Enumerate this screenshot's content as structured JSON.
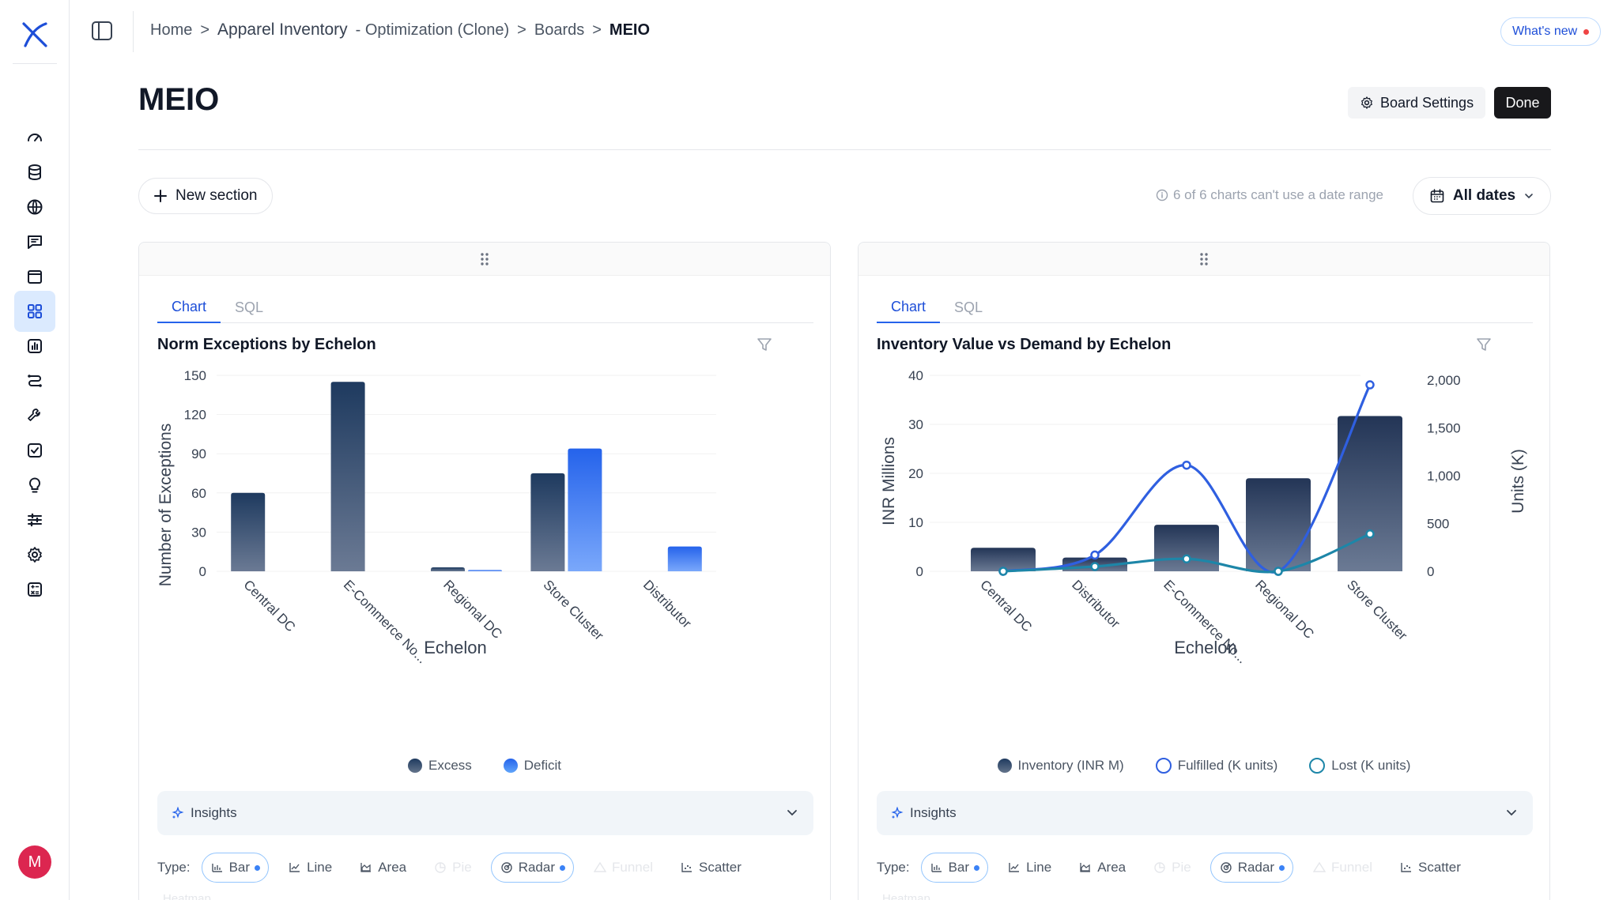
{
  "breadcrumb": {
    "home": "Home",
    "project": "Apparel Inventory",
    "project_sub": "- Optimization (Clone)",
    "boards": "Boards",
    "current": "MEIO",
    "separator": ">"
  },
  "header": {
    "whats_new": "What's new",
    "page_title": "MEIO",
    "board_settings": "Board Settings",
    "done": "Done"
  },
  "toolbar": {
    "new_section": "New section",
    "date_note": "6 of 6 charts can't use a date range",
    "all_dates": "All dates"
  },
  "user": {
    "initial": "M"
  },
  "sidebar": {
    "icons": [
      "gauge-icon",
      "database-icon",
      "globe-icon",
      "chat-icon",
      "folder-icon",
      "boards-icon",
      "report-icon",
      "workflow-icon",
      "tools-icon",
      "checklist-icon",
      "lightbulb-icon",
      "sliders-icon",
      "settings-gear-icon",
      "calculator-icon"
    ],
    "active_index": 5
  },
  "colors": {
    "accent": "#2563eb",
    "excess": "#1e3a5f",
    "deficit": "#3b82f6",
    "inventory": "#27375a",
    "fulfilled": "#2f5fe0",
    "lost": "#1d86a8"
  },
  "left_panel": {
    "tabs": [
      "Chart",
      "SQL"
    ],
    "active_tab": "Chart",
    "title": "Norm Exceptions by Echelon",
    "legend": [
      "Excess",
      "Deficit"
    ],
    "insights_label": "Insights",
    "type_label": "Type:",
    "types": [
      "Bar",
      "Line",
      "Area",
      "Pie",
      "Radar",
      "Funnel",
      "Scatter"
    ],
    "heatmap_label": "Heatmap"
  },
  "right_panel": {
    "tabs": [
      "Chart",
      "SQL"
    ],
    "active_tab": "Chart",
    "title": "Inventory Value vs Demand by Echelon",
    "legend": [
      "Inventory (INR M)",
      "Fulfilled (K units)",
      "Lost (K units)"
    ],
    "insights_label": "Insights",
    "type_label": "Type:",
    "types": [
      "Bar",
      "Line",
      "Area",
      "Pie",
      "Radar",
      "Funnel",
      "Scatter"
    ],
    "heatmap_label": "Heatmap"
  },
  "chart_data": [
    {
      "type": "bar",
      "title": "Norm Exceptions by Echelon",
      "xlabel": "Echelon",
      "ylabel": "Number of Exceptions",
      "ylim": [
        0,
        150
      ],
      "yticks": [
        0,
        30,
        60,
        90,
        120,
        150
      ],
      "categories": [
        "Central DC",
        "E-Commerce No...",
        "Regional DC",
        "Store Cluster",
        "Distributor"
      ],
      "series": [
        {
          "name": "Excess",
          "values": [
            60,
            145,
            3,
            75,
            0
          ]
        },
        {
          "name": "Deficit",
          "values": [
            0,
            0,
            1,
            94,
            19
          ]
        }
      ],
      "legend": "bottom",
      "grid": true
    },
    {
      "type": "bar",
      "title": "Inventory Value vs Demand by Echelon",
      "xlabel": "Echelon",
      "ylabel": "INR Millions",
      "y2label": "Units (K)",
      "ylim": [
        0,
        40
      ],
      "yticks": [
        0,
        10,
        20,
        30,
        40
      ],
      "y2lim": [
        0,
        2000
      ],
      "y2ticks": [
        "0",
        "500",
        "1,000",
        "1,500",
        "2,000"
      ],
      "categories": [
        "Central DC",
        "Distributor",
        "E-Commerce No...",
        "Regional DC",
        "Store Cluster"
      ],
      "series": [
        {
          "name": "Inventory (INR M)",
          "kind": "bar",
          "axis": "left",
          "values": [
            4.8,
            2.8,
            9.5,
            19,
            31.7
          ]
        },
        {
          "name": "Fulfilled (K units)",
          "kind": "line",
          "axis": "right",
          "values": [
            0,
            170,
            1110,
            0,
            1950
          ]
        },
        {
          "name": "Lost (K units)",
          "kind": "line",
          "axis": "right",
          "values": [
            0,
            50,
            130,
            0,
            390
          ]
        }
      ],
      "legend": "bottom",
      "grid": true
    }
  ]
}
